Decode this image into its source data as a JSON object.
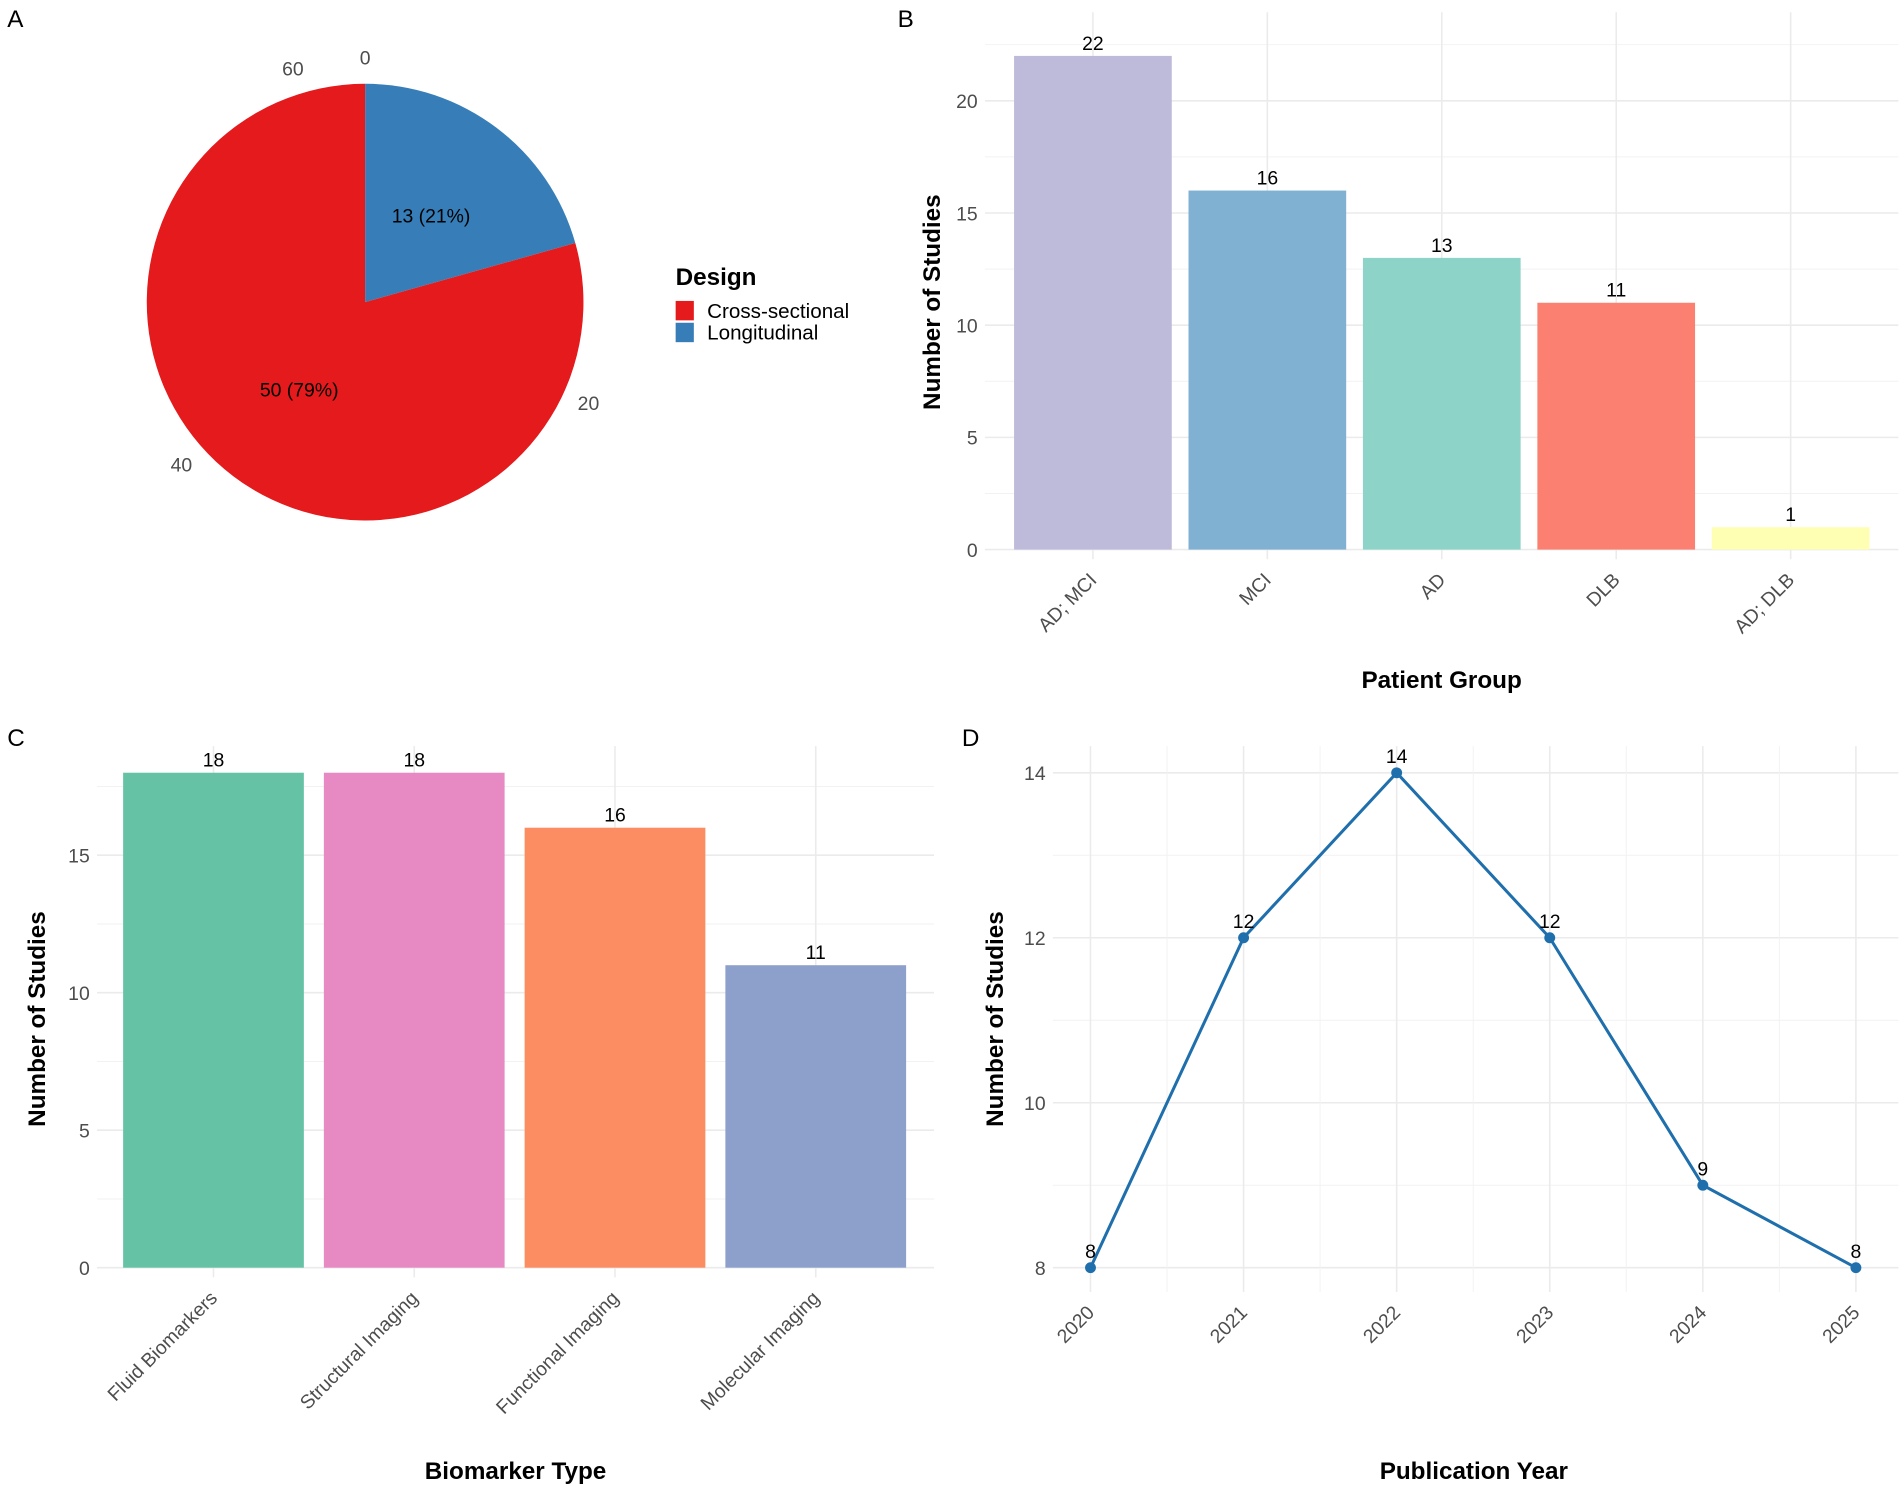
{
  "chart_data": [
    {
      "panel": "A",
      "type": "pie",
      "legend_title": "Design",
      "legend_position": "right",
      "slices": [
        {
          "name": "Longitudinal",
          "value": 13,
          "label": "13 (21%)",
          "color": "#377EB8"
        },
        {
          "name": "Cross-sectional",
          "value": 50,
          "label": "50 (79%)",
          "color": "#E41A1C"
        }
      ],
      "legend_entries": [
        "Cross-sectional",
        "Longitudinal"
      ],
      "legend_colors": [
        "#E41A1C",
        "#377EB8"
      ],
      "angle_ticks": [
        0,
        20,
        40,
        60
      ]
    },
    {
      "panel": "B",
      "type": "bar",
      "xlabel": "Patient Group",
      "ylabel": "Number of Studies",
      "categories": [
        "AD; MCI",
        "MCI",
        "AD",
        "DLB",
        "AD; DLB"
      ],
      "values": [
        22,
        16,
        13,
        11,
        1
      ],
      "colors": [
        "#BEBADA",
        "#80B1D3",
        "#8DD3C7",
        "#FB8072",
        "#FFFFB3"
      ],
      "yticks": [
        0,
        5,
        10,
        15,
        20
      ],
      "ylim": [
        0,
        22
      ]
    },
    {
      "panel": "C",
      "type": "bar",
      "xlabel": "Biomarker Type",
      "ylabel": "Number of Studies",
      "categories": [
        "Fluid Biomarkers",
        "Structural Imaging",
        "Functional Imaging",
        "Molecular Imaging"
      ],
      "values": [
        18,
        18,
        16,
        11
      ],
      "colors": [
        "#66C2A5",
        "#E78AC3",
        "#FC8D62",
        "#8DA0CB"
      ],
      "yticks": [
        0,
        5,
        10,
        15
      ],
      "ylim": [
        0,
        18
      ]
    },
    {
      "panel": "D",
      "type": "line",
      "xlabel": "Publication Year",
      "ylabel": "Number of Studies",
      "x": [
        "2020",
        "2021",
        "2022",
        "2023",
        "2024",
        "2025"
      ],
      "values": [
        8,
        12,
        14,
        12,
        9,
        8
      ],
      "color": "#1F6FAD",
      "yticks": [
        8,
        10,
        12,
        14
      ],
      "ylim": [
        8,
        14
      ]
    }
  ]
}
